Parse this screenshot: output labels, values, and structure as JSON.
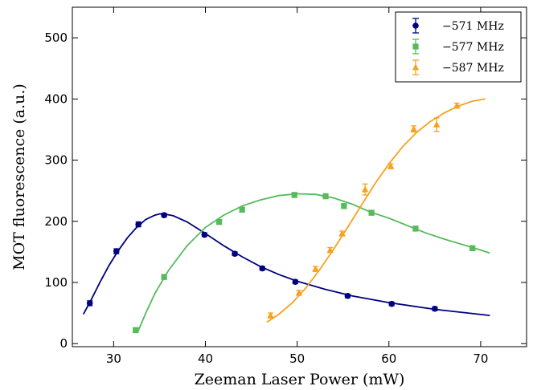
{
  "chart_data": {
    "type": "scatter",
    "title": "",
    "xlabel": "Zeeman Laser Power (mW)",
    "ylabel": "MOT fluorescence (a.u.)",
    "xlim": [
      25.5,
      75
    ],
    "ylim": [
      -5,
      550
    ],
    "xticks": [
      30,
      40,
      50,
      60,
      70
    ],
    "yticks": [
      0,
      100,
      200,
      300,
      400,
      500
    ],
    "grid": false,
    "legend_position": "top-right",
    "series": [
      {
        "name": "−571 MHz",
        "color": "#000080",
        "marker": "circle",
        "points": [
          {
            "x": 27.4,
            "y": 66,
            "err": 4
          },
          {
            "x": 30.3,
            "y": 151,
            "err": 4
          },
          {
            "x": 32.7,
            "y": 195,
            "err": 4
          },
          {
            "x": 35.5,
            "y": 210,
            "err": 3
          },
          {
            "x": 39.9,
            "y": 178,
            "err": 3
          },
          {
            "x": 43.2,
            "y": 147,
            "err": 3
          },
          {
            "x": 46.2,
            "y": 123,
            "err": 3
          },
          {
            "x": 49.8,
            "y": 101,
            "err": 3
          },
          {
            "x": 55.5,
            "y": 78,
            "err": 3
          },
          {
            "x": 60.3,
            "y": 65,
            "err": 3
          },
          {
            "x": 65.0,
            "y": 57,
            "err": 3
          }
        ],
        "fit": [
          [
            26.7,
            48
          ],
          [
            27.5,
            70
          ],
          [
            28.5,
            100
          ],
          [
            29.5,
            128
          ],
          [
            30.5,
            152
          ],
          [
            31.5,
            173
          ],
          [
            32.5,
            190
          ],
          [
            33.5,
            203
          ],
          [
            34.5,
            210
          ],
          [
            35.0,
            212
          ],
          [
            35.5,
            212
          ],
          [
            36.5,
            209
          ],
          [
            38,
            199
          ],
          [
            40,
            180
          ],
          [
            42,
            160
          ],
          [
            44,
            142
          ],
          [
            46,
            126
          ],
          [
            48,
            113
          ],
          [
            50,
            102
          ],
          [
            53,
            89
          ],
          [
            56,
            78
          ],
          [
            60,
            67
          ],
          [
            65,
            56
          ],
          [
            71,
            46
          ]
        ]
      },
      {
        "name": "−577 MHz",
        "color": "#55bb5b",
        "marker": "square",
        "points": [
          {
            "x": 32.4,
            "y": 22,
            "err": 4
          },
          {
            "x": 35.5,
            "y": 109,
            "err": 4
          },
          {
            "x": 41.5,
            "y": 199,
            "err": 4
          },
          {
            "x": 44.0,
            "y": 219,
            "err": 4
          },
          {
            "x": 49.7,
            "y": 243,
            "err": 4
          },
          {
            "x": 53.1,
            "y": 241,
            "err": 4
          },
          {
            "x": 55.1,
            "y": 225,
            "err": 4
          },
          {
            "x": 58.1,
            "y": 214,
            "err": 4
          },
          {
            "x": 62.9,
            "y": 188,
            "err": 4
          },
          {
            "x": 69.1,
            "y": 156,
            "err": 4
          }
        ],
        "fit": [
          [
            32.6,
            18
          ],
          [
            33.5,
            50
          ],
          [
            34.5,
            82
          ],
          [
            36,
            120
          ],
          [
            38,
            160
          ],
          [
            40,
            190
          ],
          [
            42,
            210
          ],
          [
            44,
            225
          ],
          [
            46,
            235
          ],
          [
            48,
            242
          ],
          [
            50,
            245
          ],
          [
            52,
            244
          ],
          [
            54,
            238
          ],
          [
            56,
            228
          ],
          [
            58,
            215
          ],
          [
            60,
            205
          ],
          [
            62,
            193
          ],
          [
            64,
            181
          ],
          [
            66,
            171
          ],
          [
            68,
            162
          ],
          [
            70,
            153
          ],
          [
            71,
            148
          ]
        ]
      },
      {
        "name": "−587 MHz",
        "color": "#f7a21d",
        "marker": "triangle",
        "points": [
          {
            "x": 47.1,
            "y": 46,
            "err": 4
          },
          {
            "x": 50.2,
            "y": 83,
            "err": 4
          },
          {
            "x": 52.0,
            "y": 122,
            "err": 4
          },
          {
            "x": 53.6,
            "y": 153,
            "err": 4
          },
          {
            "x": 54.9,
            "y": 180,
            "err": 4
          },
          {
            "x": 57.4,
            "y": 252,
            "err": 9
          },
          {
            "x": 60.2,
            "y": 290,
            "err": 4
          },
          {
            "x": 62.7,
            "y": 351,
            "err": 5
          },
          {
            "x": 65.2,
            "y": 358,
            "err": 11
          },
          {
            "x": 67.4,
            "y": 389,
            "err": 4
          }
        ],
        "fit": [
          [
            46.7,
            35
          ],
          [
            48,
            48
          ],
          [
            49.5,
            67
          ],
          [
            51,
            92
          ],
          [
            52.5,
            122
          ],
          [
            54,
            155
          ],
          [
            55.5,
            190
          ],
          [
            57,
            226
          ],
          [
            58.5,
            262
          ],
          [
            60,
            294
          ],
          [
            61.5,
            322
          ],
          [
            63,
            345
          ],
          [
            64.5,
            363
          ],
          [
            66,
            377
          ],
          [
            67.5,
            388
          ],
          [
            69,
            396
          ],
          [
            70.5,
            400
          ]
        ]
      }
    ]
  }
}
